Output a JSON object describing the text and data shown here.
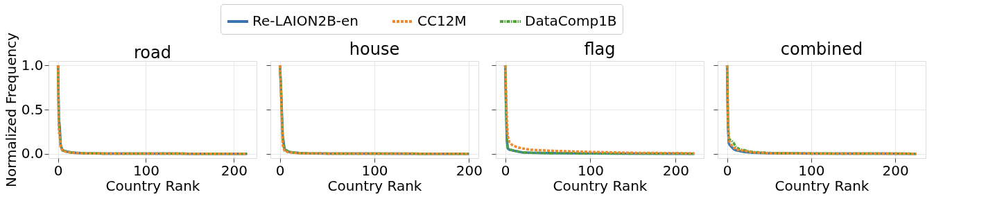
{
  "chart_data": [
    {
      "type": "line",
      "title": "road",
      "xlabel": "Country Rank",
      "ylabel": "Normalized Frequency",
      "xlim": [
        -10.75,
        225.75
      ],
      "xticks": [
        0,
        100,
        200
      ],
      "ylim": [
        -0.05,
        1.05
      ],
      "yticks": [
        {
          "value": 0,
          "label": "0.0"
        },
        {
          "value": 0.5,
          "label": "0.5"
        },
        {
          "value": 1,
          "label": "1.0"
        }
      ],
      "grid": true,
      "legend": "top",
      "marker": "none",
      "x": [
        0,
        1,
        2,
        3,
        5,
        8,
        10,
        15,
        20,
        30,
        50,
        100,
        150,
        215
      ],
      "series": [
        {
          "name": "Re-LAION2B-en",
          "color": "#3a75b0",
          "line_style": "solid",
          "values": [
            1.0,
            0.4,
            0.3,
            0.1,
            0.04,
            0.03,
            0.025,
            0.015,
            0.01,
            0.005,
            0.002,
            0.001,
            0.0,
            0.0
          ]
        },
        {
          "name": "CC12M",
          "color": "#f08a2c",
          "line_style": "dashed",
          "values": [
            1.0,
            0.25,
            0.2,
            0.08,
            0.035,
            0.025,
            0.02,
            0.012,
            0.008,
            0.004,
            0.002,
            0.001,
            0.0,
            0.0
          ]
        },
        {
          "name": "DataComp1B",
          "color": "#4fa33b",
          "line_style": "dashdot",
          "values": [
            1.0,
            0.35,
            0.25,
            0.09,
            0.04,
            0.03,
            0.022,
            0.013,
            0.009,
            0.004,
            0.002,
            0.001,
            0.0,
            0.0
          ]
        }
      ]
    },
    {
      "type": "line",
      "title": "house",
      "xlabel": "Country Rank",
      "xlim": [
        -10,
        210
      ],
      "xticks": [
        0,
        100,
        200
      ],
      "ylim": [
        -0.05,
        1.05
      ],
      "yticks": [
        0,
        0.5,
        1
      ],
      "grid": true,
      "tick_labels": "x",
      "marker": "none",
      "x": [
        0,
        1,
        2,
        3,
        5,
        8,
        10,
        15,
        20,
        30,
        50,
        100,
        150,
        200
      ],
      "series": [
        {
          "name": "Re-LAION2B-en",
          "color": "#3a75b0",
          "line_style": "solid",
          "values": [
            1.0,
            0.8,
            0.5,
            0.2,
            0.05,
            0.03,
            0.02,
            0.012,
            0.008,
            0.004,
            0.002,
            0.001,
            0.0,
            0.0
          ]
        },
        {
          "name": "CC12M",
          "color": "#f08a2c",
          "line_style": "dashed",
          "values": [
            1.0,
            0.75,
            0.4,
            0.1,
            0.03,
            0.02,
            0.015,
            0.01,
            0.006,
            0.003,
            0.002,
            0.001,
            0.0,
            0.0
          ]
        },
        {
          "name": "DataComp1B",
          "color": "#4fa33b",
          "line_style": "dashdot",
          "values": [
            1.0,
            0.8,
            0.45,
            0.15,
            0.045,
            0.03,
            0.02,
            0.012,
            0.008,
            0.004,
            0.002,
            0.001,
            0.0,
            0.0
          ]
        }
      ]
    },
    {
      "type": "line",
      "title": "flag",
      "xlabel": "Country Rank",
      "xlim": [
        -11.1,
        233.1
      ],
      "xticks": [
        0,
        100,
        200
      ],
      "ylim": [
        -0.05,
        1.05
      ],
      "yticks": [
        0,
        0.5,
        1
      ],
      "grid": true,
      "tick_labels": "x",
      "marker": "none",
      "x": [
        0,
        1,
        2,
        3,
        5,
        8,
        10,
        15,
        20,
        30,
        50,
        100,
        150,
        222
      ],
      "series": [
        {
          "name": "Re-LAION2B-en",
          "color": "#3a75b0",
          "line_style": "solid",
          "values": [
            1.0,
            0.5,
            0.15,
            0.06,
            0.045,
            0.04,
            0.035,
            0.025,
            0.015,
            0.01,
            0.006,
            0.003,
            0.001,
            0.0
          ]
        },
        {
          "name": "CC12M",
          "color": "#f08a2c",
          "line_style": "dashed",
          "values": [
            1.0,
            0.7,
            0.35,
            0.2,
            0.13,
            0.1,
            0.09,
            0.07,
            0.06,
            0.045,
            0.035,
            0.02,
            0.01,
            0.005
          ]
        },
        {
          "name": "DataComp1B",
          "color": "#4fa33b",
          "line_style": "dashdot",
          "values": [
            1.0,
            0.5,
            0.15,
            0.06,
            0.045,
            0.04,
            0.035,
            0.025,
            0.015,
            0.01,
            0.006,
            0.003,
            0.001,
            0.0
          ]
        }
      ]
    },
    {
      "type": "line",
      "title": "combined",
      "xlabel": "Country Rank",
      "xlim": [
        -11.25,
        236.25
      ],
      "xticks": [
        0,
        100,
        200
      ],
      "ylim": [
        -0.05,
        1.05
      ],
      "yticks": [
        0,
        0.5,
        1
      ],
      "grid": true,
      "tick_labels": "x",
      "marker": "none",
      "x": [
        0,
        1,
        2,
        3,
        5,
        8,
        10,
        15,
        20,
        30,
        50,
        100,
        150,
        225
      ],
      "series": [
        {
          "name": "Re-LAION2B-en",
          "color": "#3a75b0",
          "line_style": "solid",
          "values": [
            1.0,
            0.3,
            0.12,
            0.1,
            0.08,
            0.05,
            0.04,
            0.03,
            0.02,
            0.01,
            0.005,
            0.002,
            0.001,
            0.0
          ]
        },
        {
          "name": "CC12M",
          "color": "#f08a2c",
          "line_style": "dashed",
          "values": [
            1.0,
            0.35,
            0.16,
            0.13,
            0.1,
            0.07,
            0.05,
            0.04,
            0.035,
            0.015,
            0.006,
            0.002,
            0.001,
            0.0
          ]
        },
        {
          "name": "DataComp1B",
          "color": "#4fa33b",
          "line_style": "dashdot",
          "values": [
            1.0,
            0.4,
            0.18,
            0.16,
            0.15,
            0.12,
            0.08,
            0.05,
            0.04,
            0.02,
            0.008,
            0.003,
            0.001,
            0.0
          ]
        }
      ]
    }
  ]
}
